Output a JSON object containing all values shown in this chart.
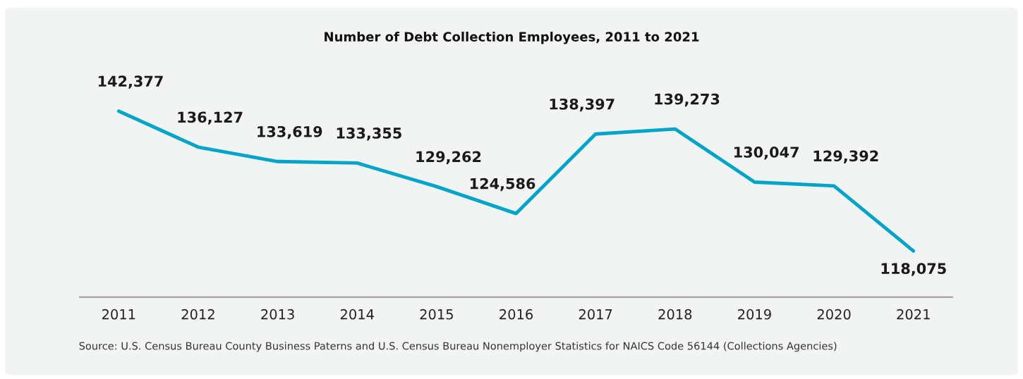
{
  "chart_data": {
    "type": "line",
    "title": "Number of Debt Collection Employees, 2011 to 2021",
    "categories": [
      "2011",
      "2012",
      "2013",
      "2014",
      "2015",
      "2016",
      "2017",
      "2018",
      "2019",
      "2020",
      "2021"
    ],
    "series": [
      {
        "color": "#00a5c8",
        "values": [
          142377,
          136127,
          133619,
          133355,
          129262,
          124586,
          138397,
          139273,
          130047,
          129392,
          118075
        ],
        "value_labels": [
          "142,377",
          "136,127",
          "133,619",
          "133,355",
          "129,262",
          "124,586",
          "138,397",
          "139,273",
          "130,047",
          "129,392",
          "118,075"
        ]
      }
    ],
    "grid": false,
    "legend": false,
    "marker": "none",
    "line_style": "solid",
    "annotations": [
      "Source: U.S. Census Bureau County Business Paterns and U.S. Census Bureau Nonemployer Statistics for NAICS Code 56144 (Collections Agencies)"
    ]
  }
}
